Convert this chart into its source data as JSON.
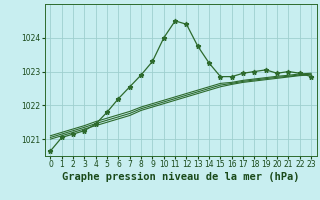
{
  "title": "Graphe pression niveau de la mer (hPa)",
  "background_color": "#c8eef0",
  "grid_color": "#9fcfcf",
  "line_color": "#2d6a2d",
  "text_color": "#1a4a1a",
  "x_hours": [
    0,
    1,
    2,
    3,
    4,
    5,
    6,
    7,
    8,
    9,
    10,
    11,
    12,
    13,
    14,
    15,
    16,
    17,
    18,
    19,
    20,
    21,
    22,
    23
  ],
  "line_main": [
    1020.65,
    1021.05,
    1021.15,
    1021.25,
    1021.45,
    1021.8,
    1022.2,
    1022.55,
    1022.9,
    1023.3,
    1024.0,
    1024.5,
    1024.4,
    1023.75,
    1023.25,
    1022.85,
    1022.85,
    1022.95,
    1023.0,
    1023.05,
    1022.95,
    1023.0,
    1022.95,
    1022.85
  ],
  "line_flat1": [
    1021.0,
    1021.1,
    1021.2,
    1021.3,
    1021.4,
    1021.5,
    1021.6,
    1021.7,
    1021.85,
    1021.95,
    1022.05,
    1022.15,
    1022.25,
    1022.35,
    1022.45,
    1022.55,
    1022.62,
    1022.68,
    1022.72,
    1022.76,
    1022.8,
    1022.84,
    1022.88,
    1022.9
  ],
  "line_flat2": [
    1021.05,
    1021.15,
    1021.25,
    1021.35,
    1021.46,
    1021.56,
    1021.66,
    1021.76,
    1021.9,
    1022.0,
    1022.1,
    1022.2,
    1022.3,
    1022.4,
    1022.5,
    1022.6,
    1022.65,
    1022.71,
    1022.75,
    1022.79,
    1022.83,
    1022.86,
    1022.9,
    1022.92
  ],
  "line_flat3": [
    1021.1,
    1021.2,
    1021.3,
    1021.4,
    1021.52,
    1021.62,
    1021.72,
    1021.82,
    1021.95,
    1022.05,
    1022.15,
    1022.25,
    1022.35,
    1022.45,
    1022.55,
    1022.65,
    1022.68,
    1022.74,
    1022.78,
    1022.82,
    1022.86,
    1022.89,
    1022.93,
    1022.95
  ],
  "ylim_min": 1020.5,
  "ylim_max": 1025.0,
  "yticks": [
    1021,
    1022,
    1023,
    1024
  ],
  "title_fontsize": 7.5,
  "tick_fontsize": 5.5
}
